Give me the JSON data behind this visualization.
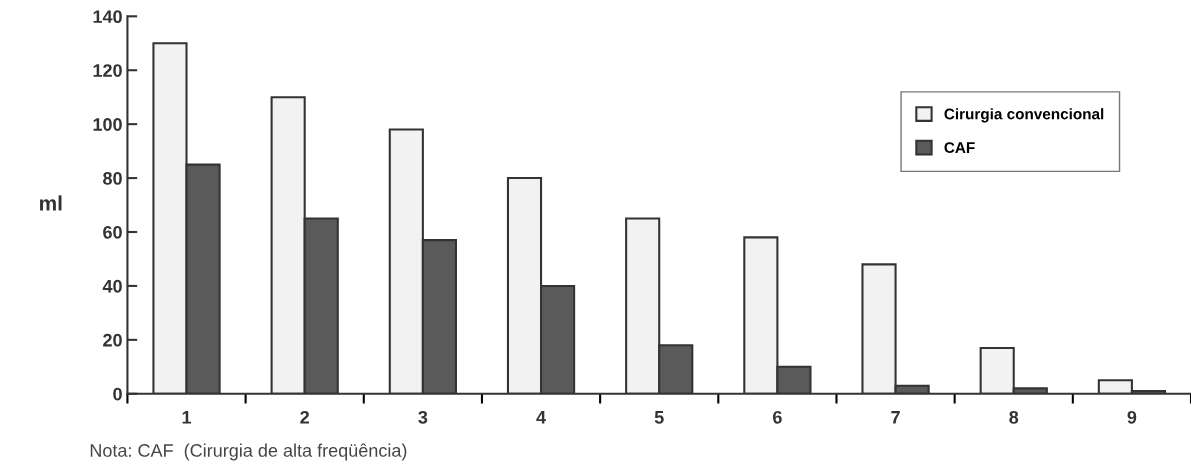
{
  "chart_data": {
    "type": "bar",
    "ylabel": "ml",
    "categories": [
      "1",
      "2",
      "3",
      "4",
      "5",
      "6",
      "7",
      "8",
      "9"
    ],
    "series": [
      {
        "name": "Cirurgia convencional",
        "color": "#f2f2f2",
        "values": [
          130,
          110,
          98,
          80,
          65,
          58,
          48,
          17,
          5
        ]
      },
      {
        "name": "CAF",
        "color": "#5a5a5a",
        "values": [
          85,
          65,
          57,
          40,
          18,
          10,
          3,
          2,
          1
        ]
      }
    ],
    "ylim": [
      0,
      140
    ],
    "yticks": [
      0,
      20,
      40,
      60,
      80,
      100,
      120,
      140
    ],
    "grid": false,
    "legend": "upper right",
    "annotations": [
      "Nota: CAF  (Cirurgia de alta freqüência)"
    ]
  }
}
